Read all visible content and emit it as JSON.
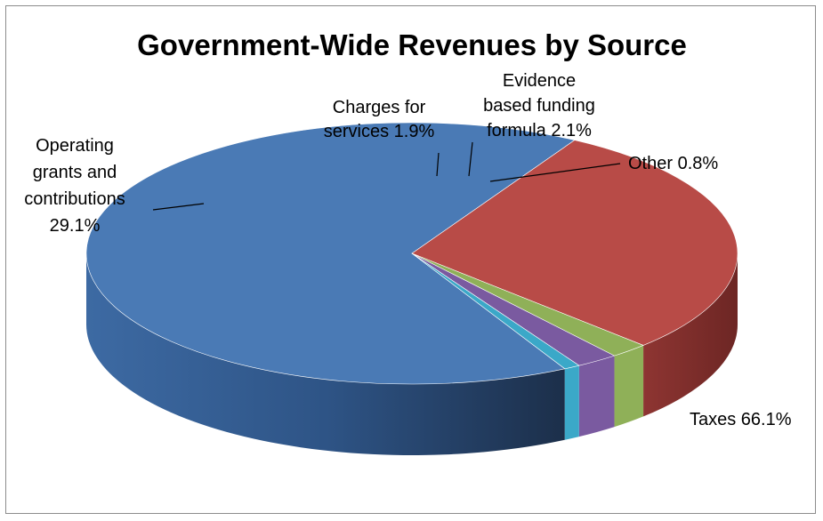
{
  "chart_data": {
    "type": "pie",
    "title": "Government-Wide Revenues by Source",
    "slices": [
      {
        "label_lines": [
          "Taxes 66.1%"
        ],
        "value": 66.1,
        "color": "#4a7ab5"
      },
      {
        "label_lines": [
          "Operating",
          "grants and",
          "contributions",
          "29.1%"
        ],
        "value": 29.1,
        "color": "#b84b47"
      },
      {
        "label_lines": [
          "Charges  for",
          "services  1.9%"
        ],
        "value": 1.9,
        "color": "#8fb058"
      },
      {
        "label_lines": [
          "Evidence",
          "based funding",
          "formula 2.1%"
        ],
        "value": 2.1,
        "color": "#7a5aa0"
      },
      {
        "label_lines": [
          "Other 0.8%"
        ],
        "value": 0.8,
        "color": "#3ba8c8"
      }
    ]
  }
}
